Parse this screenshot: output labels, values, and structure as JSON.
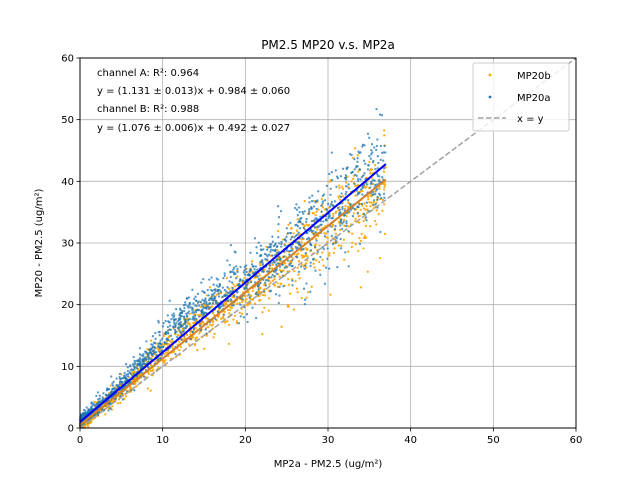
{
  "chart_data": {
    "type": "scatter",
    "title": "PM2.5 MP20 v.s. MP2a",
    "xlabel": "MP2a - PM2.5 (ug/m²)",
    "ylabel": "MP20 - PM2.5 (ug/m²)",
    "xlim": [
      0,
      60
    ],
    "ylim": [
      0,
      60
    ],
    "xticks": [
      "0",
      "10",
      "20",
      "30",
      "40",
      "50",
      "60"
    ],
    "yticks": [
      "0",
      "10",
      "20",
      "30",
      "40",
      "50",
      "60"
    ],
    "grid": true,
    "legend_position": "top-right",
    "annotations": [
      "channel A: R²: 0.964",
      "y = (1.131 ± 0.013)x + 0.984 ± 0.060",
      "channel B: R²: 0.988",
      "y = (1.076 ± 0.006)x + 0.492 ± 0.027"
    ],
    "series": [
      {
        "name": "MP20b",
        "kind": "scatter",
        "color": "#ffa500",
        "slope": 1.076,
        "intercept": 0.492,
        "x_range": [
          0,
          37
        ]
      },
      {
        "name": "MP20a",
        "kind": "scatter",
        "color": "#1f77b4",
        "slope": 1.131,
        "intercept": 0.984,
        "x_range": [
          0,
          37
        ]
      },
      {
        "name": "x = y",
        "kind": "reference-line",
        "color": "#a0a0a0",
        "slope": 1,
        "intercept": 0
      }
    ],
    "fit_lines": [
      {
        "series": "MP20a",
        "color": "#0000ff",
        "x": [
          0,
          37
        ],
        "y": [
          0.984,
          42.8
        ]
      },
      {
        "series": "MP20b",
        "color": "#d2812a",
        "x": [
          0,
          37
        ],
        "y": [
          0.492,
          40.3
        ]
      }
    ]
  }
}
